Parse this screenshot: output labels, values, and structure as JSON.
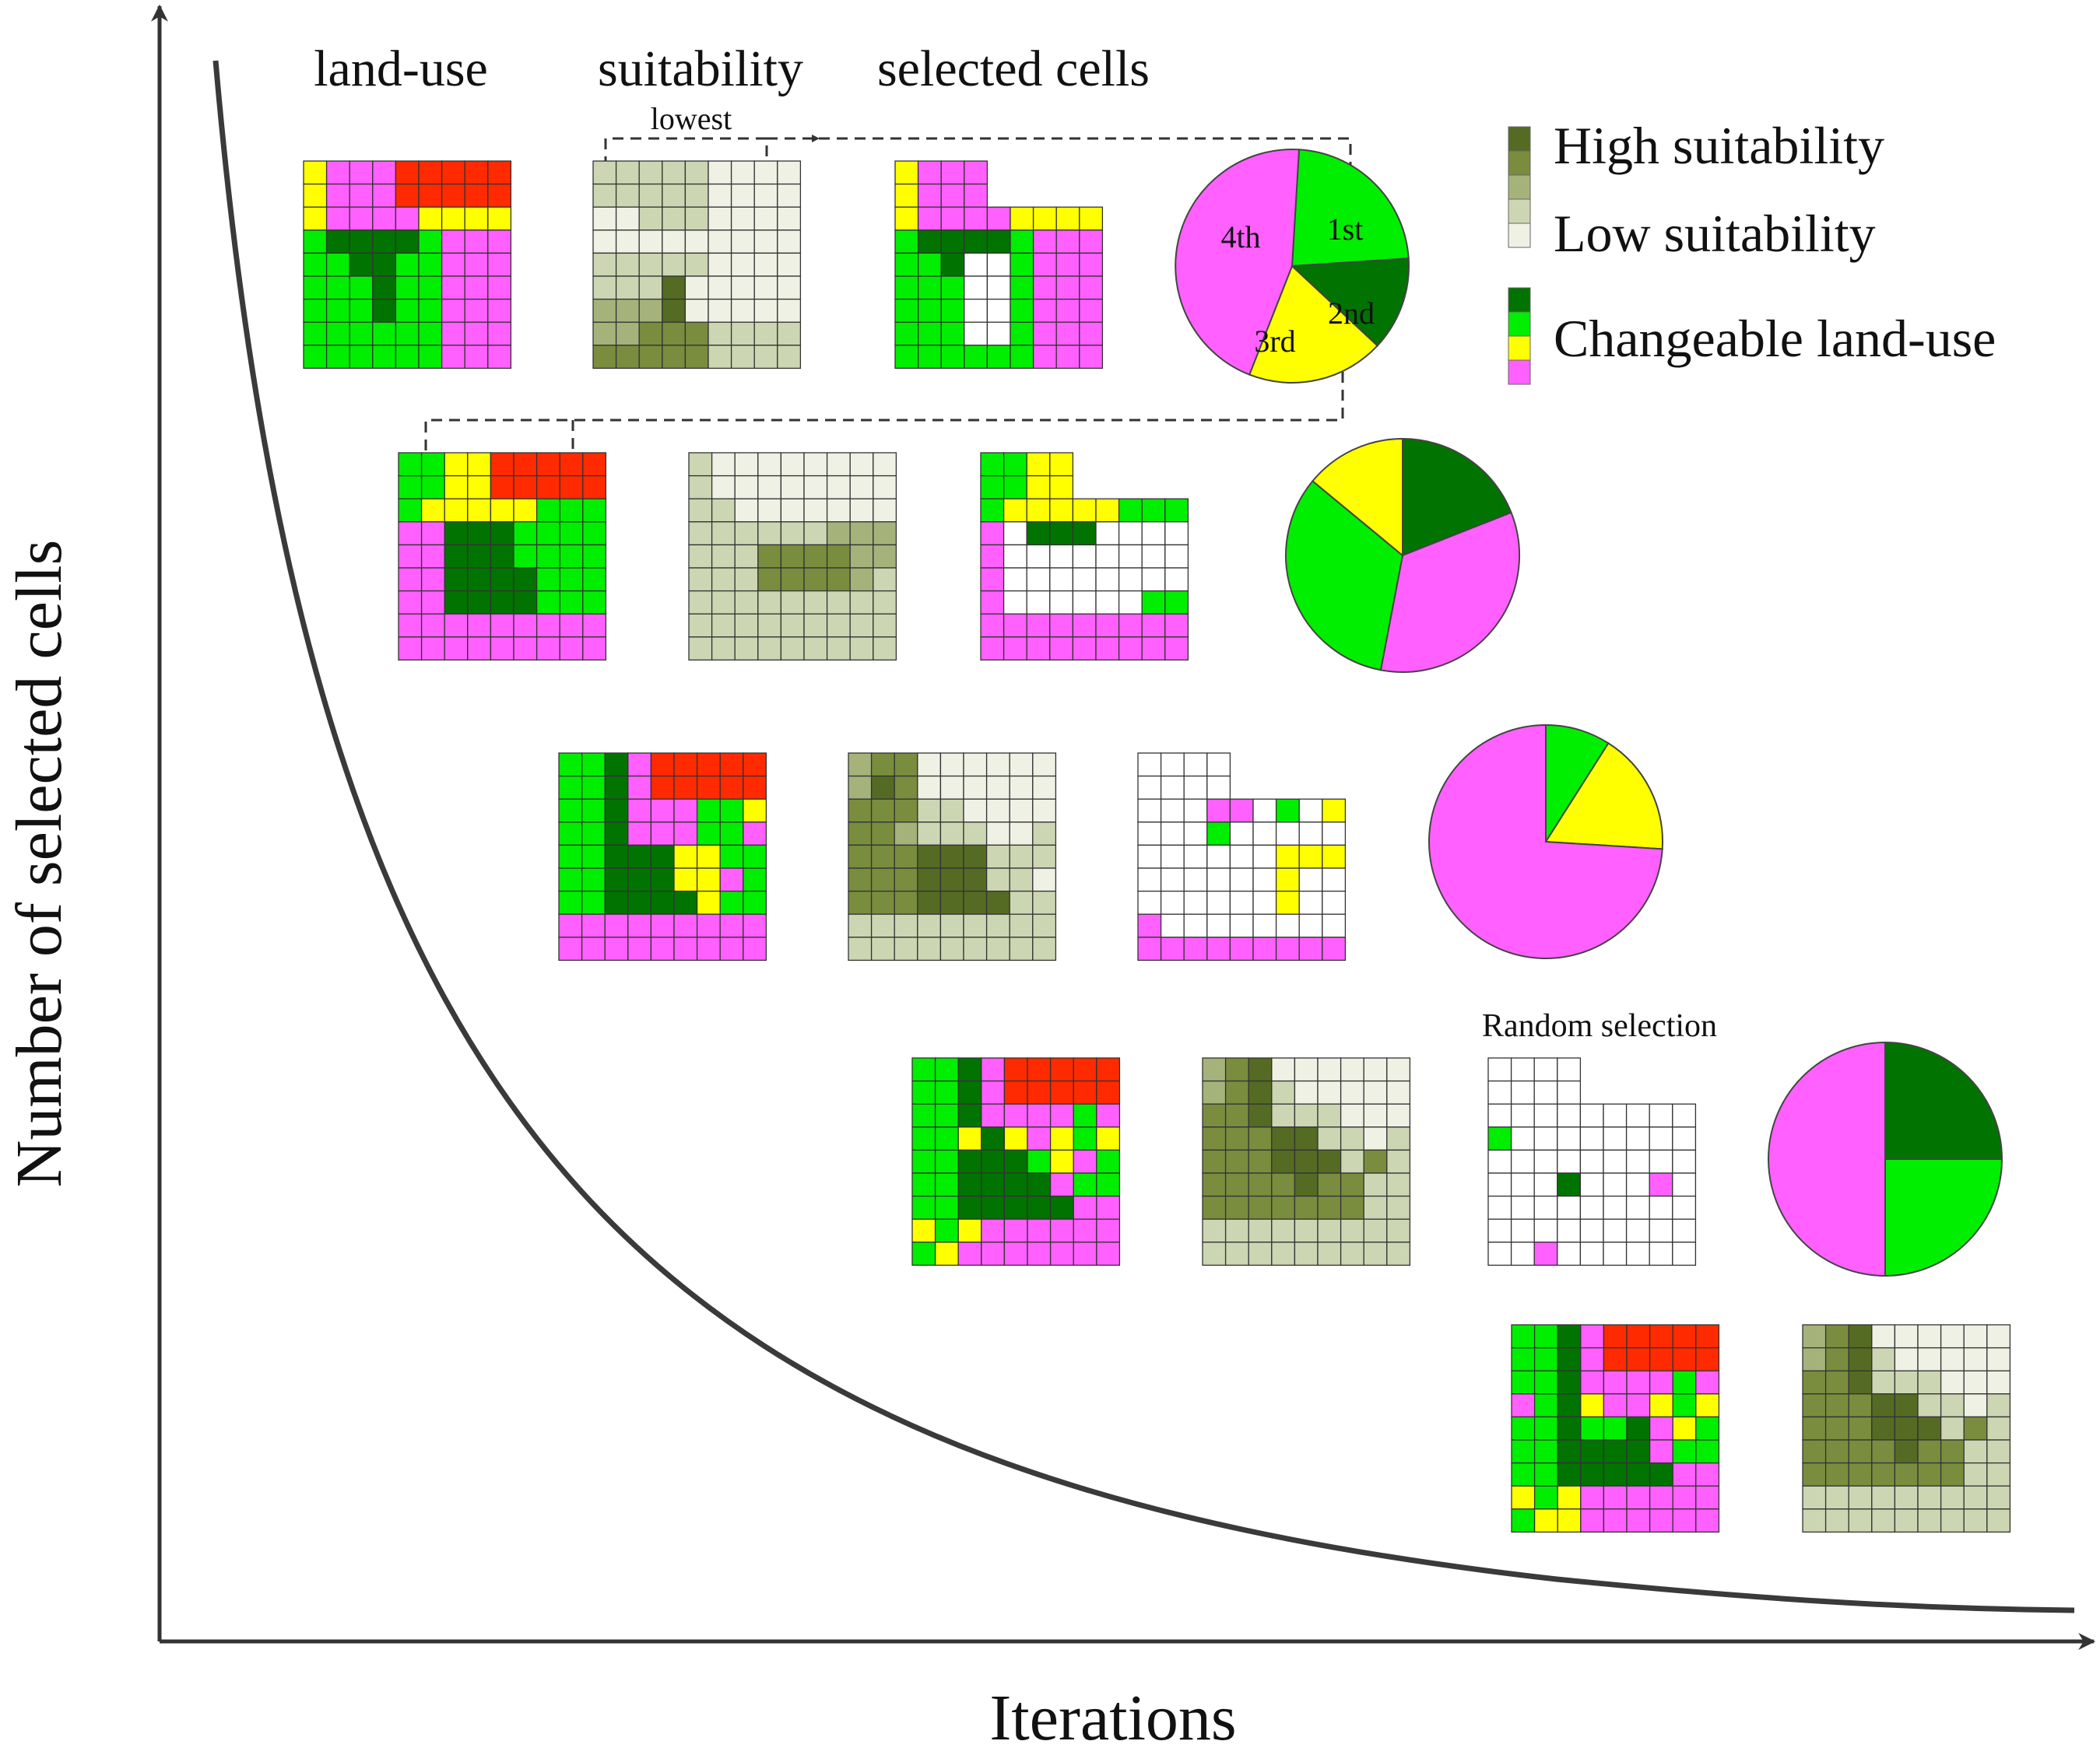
{
  "axes": {
    "y_label": "Number of selected cells",
    "x_label": "Iterations"
  },
  "headers": {
    "landuse": "land-use",
    "suitability": "suitability",
    "selected": "selected cells"
  },
  "annotations": {
    "lowest": "lowest",
    "random_selection": "Random selection"
  },
  "legend": {
    "high": "High suitability",
    "low": "Low suitability",
    "changeable": "Changeable land-use"
  },
  "rank_labels": [
    "1st",
    "2nd",
    "3rd",
    "4th"
  ],
  "colors": {
    "dark_green": "#007300",
    "green": "#00ee00",
    "yellow": "#ffff00",
    "magenta": "#ff60ff",
    "red": "#ff2a00",
    "white": "#ffffff",
    "suit_1": "#556b23",
    "suit_2": "#7a8c3e",
    "suit_3": "#a5b27a",
    "suit_4": "#cdd6b3",
    "suit_5": "#eef1e4"
  },
  "landuse_codes": {
    "D": "dark_green",
    "G": "green",
    "Y": "yellow",
    "M": "magenta",
    "R": "red",
    "W": "white",
    "X": "none"
  },
  "pies": [
    {
      "slices": [
        {
          "color": "green",
          "value": 0.23
        },
        {
          "color": "dark_green",
          "value": 0.13
        },
        {
          "color": "yellow",
          "value": 0.19
        },
        {
          "color": "magenta",
          "value": 0.45
        }
      ]
    },
    {
      "slices": [
        {
          "color": "dark_green",
          "value": 0.19
        },
        {
          "color": "magenta",
          "value": 0.34
        },
        {
          "color": "green",
          "value": 0.33
        },
        {
          "color": "yellow",
          "value": 0.14
        }
      ]
    },
    {
      "slices": [
        {
          "color": "green",
          "value": 0.09
        },
        {
          "color": "yellow",
          "value": 0.17
        },
        {
          "color": "magenta",
          "value": 0.74
        }
      ]
    },
    {
      "slices": [
        {
          "color": "dark_green",
          "value": 0.25
        },
        {
          "color": "green",
          "value": 0.25
        },
        {
          "color": "magenta",
          "value": 0.5
        }
      ]
    }
  ],
  "rows": [
    {
      "landuse": [
        "YMMMRRRRR",
        "YMMMRRRRR",
        "YMMMMYYYY",
        "GDDDDGMMM",
        "GGDDGGMMM",
        "GGGDGGMMM",
        "GGGDGGMMM",
        "GGGGGGMMM",
        "GGGGGGMMM"
      ],
      "suitability": [
        "444445555",
        "444445555",
        "554445555",
        "555555555",
        "444445555",
        "444155555",
        "333155555",
        "332224444",
        "222224444"
      ],
      "selected": [
        "YMMMXXXXX",
        "YMMMXXXXX",
        "YMMMMYYYY",
        "GDDDDGMMM",
        "GGDWWGMMM",
        "GGGWWGMMM",
        "GGGWWGMMM",
        "GGGWWGMMM",
        "GGGGGGMMM"
      ]
    },
    {
      "landuse": [
        "GGYYRRRRR",
        "GGYYRRRRR",
        "GYYYYYGGG",
        "MMDDDGGGG",
        "MMDDDGGGG",
        "MMDDDDGGG",
        "MMDDDDGGG",
        "MMMMMMMMM",
        "MMMMMMMMM"
      ],
      "suitability": [
        "455555555",
        "455555555",
        "445555555",
        "444444333",
        "444222233",
        "444222234",
        "444444444",
        "444444444",
        "444444444"
      ],
      "selected": [
        "GGYYXXXXX",
        "GGYYXXXXX",
        "GYYYYYGGG",
        "MWDDDWWWW",
        "MWWWWWWWW",
        "MWWWWWWWW",
        "MWWWWWWGG",
        "MMMMMMMMM",
        "MMMMMMMMM"
      ]
    },
    {
      "landuse": [
        "GGDMRRRRR",
        "GGDMRRRRR",
        "GGDMMMGGY",
        "GGDMMMGGM",
        "GGDDDYYGG",
        "GGDDDYYMG",
        "GGDDDDYGG",
        "MMMMMMMMM",
        "MMMMMMMMM"
      ],
      "suitability": [
        "322555555",
        "312555555",
        "222445555",
        "223444554",
        "222111444",
        "222111445",
        "222111144",
        "444444444",
        "444444444"
      ],
      "selected": [
        "WWWWXXXXX",
        "WWWWXXXXX",
        "WWWMMWGWY",
        "WWWGWWWWW",
        "WWWWWWYYY",
        "WWWWWWYWW",
        "WWWWWWYWW",
        "MWWWWWWWW",
        "MMMMMMMMM"
      ]
    },
    {
      "landuse": [
        "GGDMRRRRR",
        "GGDMRRRRR",
        "GGDMMMMGM",
        "GGYDYMYGY",
        "GGDDDGYMG",
        "GGDDDDMGG",
        "GGDDDDDMM",
        "YGYMMMMMM",
        "GYMMMMMMM"
      ],
      "suitability": [
        "321555555",
        "321455555",
        "221444555",
        "222114454",
        "222111424",
        "222212244",
        "222222244",
        "444444444",
        "444444444"
      ],
      "selected": [
        "WWWWXXXXX",
        "WWWWXXXXX",
        "WWWWWWWWW",
        "GWWWWWWWW",
        "WWWWWWWWW",
        "WWWDWWWMW",
        "WWWWWWWWW",
        "WWWWWWWWW",
        "WWMWWWWWW"
      ]
    },
    {
      "landuse": [
        "GGDMRRRRR",
        "GGDMRRRRR",
        "GGDMMMMGM",
        "MGDYMMYGY",
        "GGDGGDMYG",
        "GGDDDDMGG",
        "GGDDDDDMM",
        "YGYMMMMMM",
        "GYYMMMMMM"
      ],
      "suitability": [
        "321555555",
        "321455555",
        "221444555",
        "222114454",
        "222111424",
        "222212244",
        "222222244",
        "444444444",
        "444444444"
      ],
      "selected": []
    }
  ]
}
